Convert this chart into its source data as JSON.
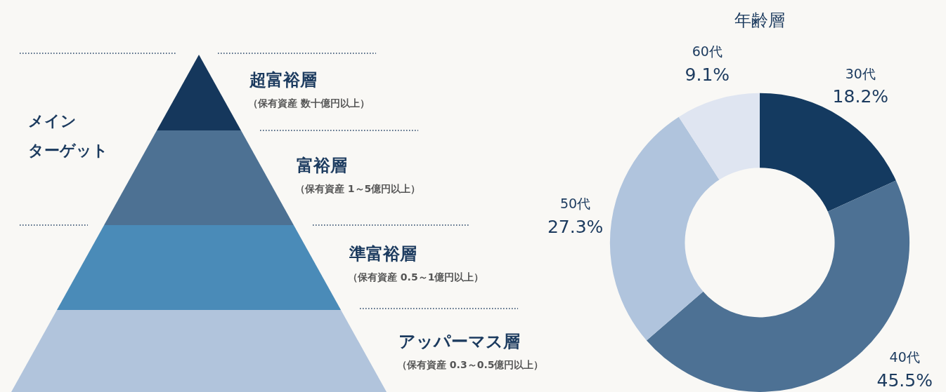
{
  "chart_data": [
    {
      "type": "other",
      "categories": [
        "超富裕層",
        "富裕層",
        "準富裕層",
        "アッパーマス層"
      ],
      "colors": [
        "#15375c",
        "#4d7193",
        "#4a8bb8",
        "#b1c4dc"
      ],
      "annotations": [
        "メイン",
        "ターゲット",
        "（保有資産 数十億円以上）",
        "（保有資産 1～5億円以上）",
        "（保有資産 0.5～1億円以上）",
        "（保有資産 0.3～0.5億円以上）"
      ]
    },
    {
      "type": "donut",
      "title": "年齢層",
      "categories": [
        "30代",
        "40代",
        "50代",
        "60代"
      ],
      "values": [
        18.2,
        45.5,
        27.3,
        9.1
      ],
      "value_labels": [
        "18.2%",
        "45.5%",
        "27.3%",
        "9.1%"
      ],
      "colors": [
        "#143a60",
        "#4d7194",
        "#b0c4dd",
        "#dfe5f1"
      ],
      "data_labels": true,
      "legend": false
    }
  ]
}
